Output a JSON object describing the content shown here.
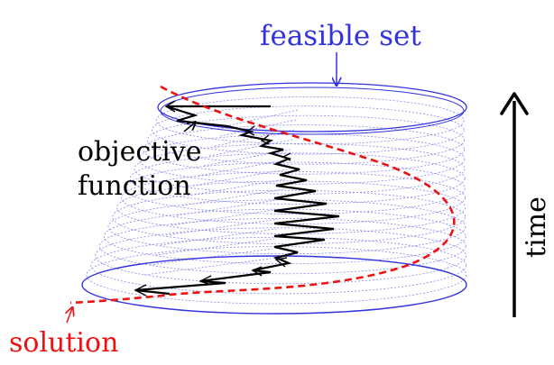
{
  "labels": {
    "feasible_set": "feasible set",
    "objective_line1": "objective",
    "objective_line2": "function",
    "solution": "solution",
    "time": "time"
  },
  "colors": {
    "feasible_set": "#3333dd",
    "solution": "#ee1111",
    "objective": "#000000",
    "hatch": "#8888ee"
  }
}
